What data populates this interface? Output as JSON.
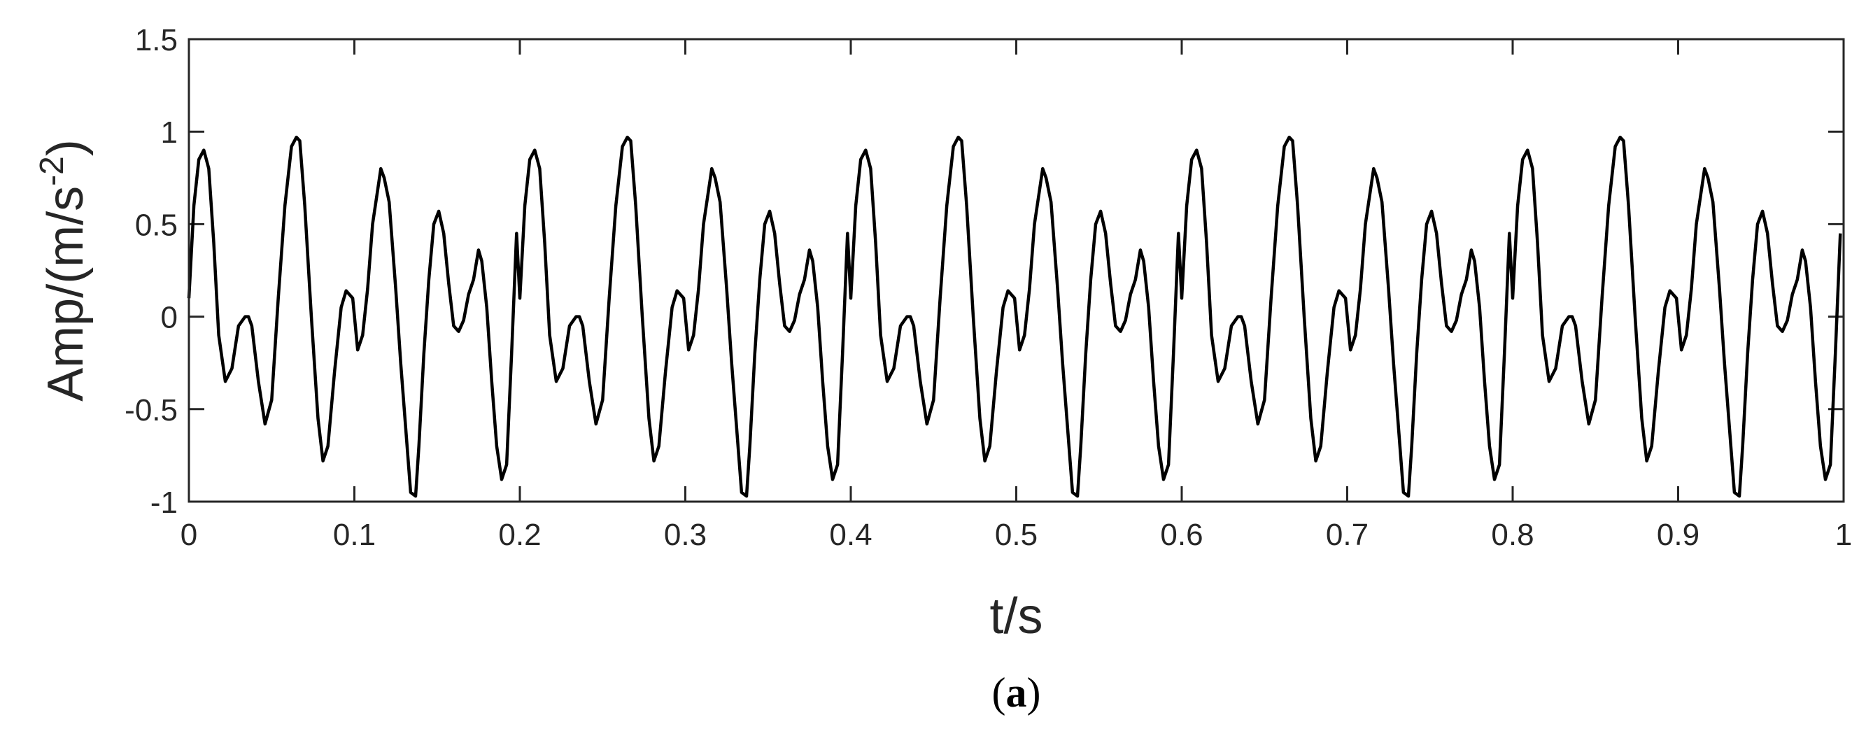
{
  "chart_data": {
    "type": "line",
    "title": "",
    "caption": {
      "open": "(",
      "letter": "a",
      "close": ")"
    },
    "xlabel": "t/s",
    "ylabel": {
      "prefix": "Amp/(m/s",
      "exponent": "-2",
      "suffix": ")"
    },
    "xlim": [
      0,
      1
    ],
    "ylim": [
      -1,
      1.5
    ],
    "xticks": [
      0,
      0.1,
      0.2,
      0.3,
      0.4,
      0.5,
      0.6,
      0.7,
      0.8,
      0.9,
      1
    ],
    "xtick_labels": [
      "0",
      "0.1",
      "0.2",
      "0.3",
      "0.4",
      "0.5",
      "0.6",
      "0.7",
      "0.8",
      "0.9",
      "1"
    ],
    "yticks": [
      -1,
      -0.5,
      0,
      0.5,
      1,
      1.5
    ],
    "ytick_labels": [
      "-1",
      "-0.5",
      "0",
      "0.5",
      "1",
      "1.5"
    ],
    "grid": false,
    "line_color": "#000000",
    "series": [
      {
        "period": 0.2,
        "x": [
          0,
          0.003,
          0.006,
          0.009,
          0.012,
          0.015,
          0.018,
          0.022,
          0.026,
          0.03,
          0.034,
          0.036,
          0.038,
          0.042,
          0.046,
          0.05,
          0.054,
          0.058,
          0.062,
          0.065,
          0.067,
          0.07,
          0.074,
          0.078,
          0.081,
          0.084,
          0.088,
          0.092,
          0.095,
          0.099,
          0.102,
          0.105,
          0.108,
          0.111,
          0.114,
          0.116,
          0.118,
          0.121,
          0.125,
          0.128,
          0.131,
          0.134,
          0.137,
          0.139,
          0.142,
          0.145,
          0.148,
          0.151,
          0.154,
          0.157,
          0.16,
          0.163,
          0.166,
          0.169,
          0.172,
          0.175,
          0.177,
          0.18,
          0.183,
          0.186,
          0.189,
          0.192,
          0.195,
          0.198
        ],
        "y": [
          0.1,
          0.6,
          0.85,
          0.9,
          0.8,
          0.4,
          -0.1,
          -0.35,
          -0.28,
          -0.05,
          0.0,
          0.0,
          -0.05,
          -0.35,
          -0.58,
          -0.45,
          0.1,
          0.6,
          0.92,
          0.97,
          0.95,
          0.6,
          0.0,
          -0.55,
          -0.78,
          -0.7,
          -0.3,
          0.05,
          0.14,
          0.1,
          -0.18,
          -0.1,
          0.15,
          0.5,
          0.68,
          0.8,
          0.75,
          0.62,
          0.15,
          -0.25,
          -0.6,
          -0.95,
          -0.97,
          -0.7,
          -0.2,
          0.2,
          0.5,
          0.57,
          0.45,
          0.18,
          -0.05,
          -0.08,
          -0.02,
          0.12,
          0.2,
          0.36,
          0.3,
          0.05,
          -0.35,
          -0.7,
          -0.88,
          -0.8,
          -0.2,
          0.45
        ]
      }
    ]
  }
}
